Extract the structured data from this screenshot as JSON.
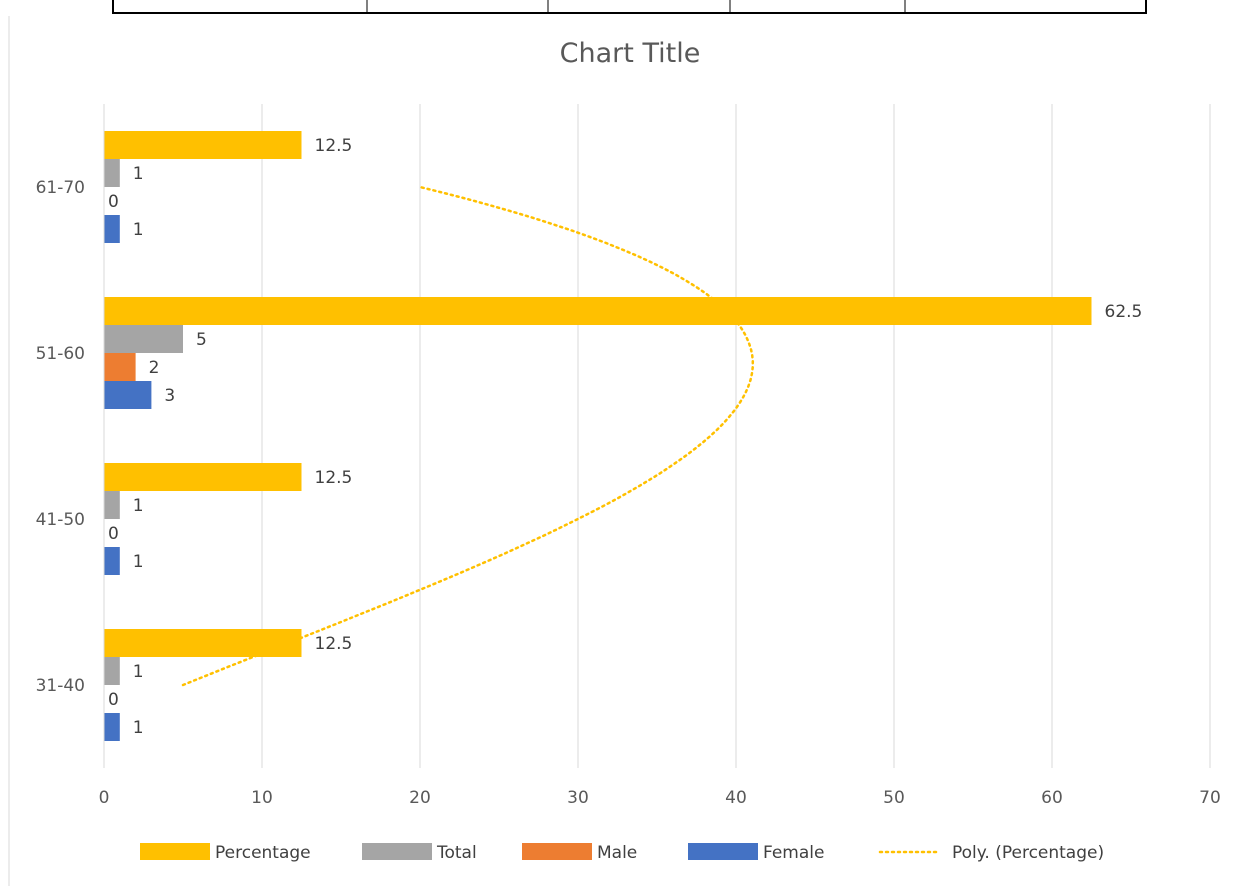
{
  "chart_data": {
    "type": "bar",
    "orientation": "horizontal",
    "title": "Chart Title",
    "xlabel": "",
    "ylabel": "",
    "xlim": [
      0,
      70
    ],
    "xticks": [
      0,
      10,
      20,
      30,
      40,
      50,
      60,
      70
    ],
    "grid": "vertical",
    "legend_position": "bottom",
    "categories": [
      "31-40",
      "41-50",
      "51-60",
      "61-70"
    ],
    "series": [
      {
        "name": "Percentage",
        "color": "#FFC000",
        "values": [
          12.5,
          12.5,
          62.5,
          12.5
        ]
      },
      {
        "name": "Total",
        "color": "#A5A5A5",
        "values": [
          1,
          1,
          5,
          1
        ]
      },
      {
        "name": "Male",
        "color": "#ED7D31",
        "values": [
          0,
          0,
          2,
          0
        ]
      },
      {
        "name": "Female",
        "color": "#4472C4",
        "values": [
          1,
          1,
          3,
          1
        ]
      }
    ],
    "trendline": {
      "name": "Poly. (Percentage)",
      "type": "polynomial",
      "of_series": "Percentage",
      "color": "#FFC000",
      "style": "dotted",
      "points": [
        {
          "category": "31-40",
          "value": 5
        },
        {
          "category": "41-50",
          "value": 30
        },
        {
          "category": "51-60",
          "value": 41
        },
        {
          "category": "61-70",
          "value": 20
        }
      ]
    }
  }
}
